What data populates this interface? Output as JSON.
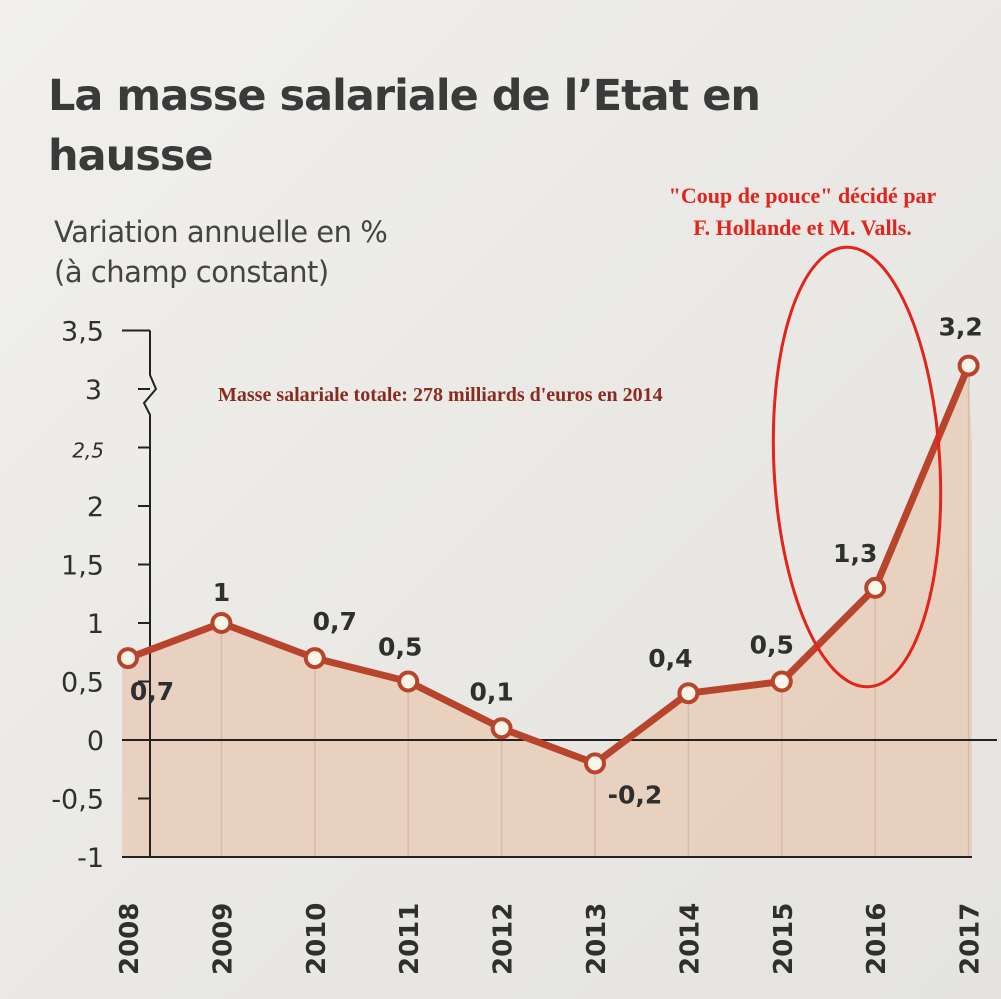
{
  "title": "La masse salariale de l’Etat en hausse",
  "subtitle_line1": "Variation annuelle en %",
  "subtitle_line2": "(à champ constant)",
  "annotations": {
    "total": "Masse salariale totale: 278 milliards d'euros en 2014",
    "boost_line1": "\"Coup de pouce\" décidé par",
    "boost_line2": "F. Hollande et M. Valls."
  },
  "colors": {
    "line": "#b8442b",
    "area": "#e7cdb8",
    "annotation_total": "#8b2a1e",
    "annotation_boost": "#e3241c",
    "ellipse": "#e3241c"
  },
  "chart_data": {
    "type": "area",
    "title": "La masse salariale de l’Etat en hausse",
    "subtitle": "Variation annuelle en % (à champ constant)",
    "x": [
      "2008",
      "2009",
      "2010",
      "2011",
      "2012",
      "2013",
      "2014",
      "2015",
      "2016",
      "2017"
    ],
    "series": [
      {
        "values": [
          0.7,
          1,
          0.7,
          0.5,
          0.1,
          -0.2,
          0.4,
          0.5,
          1.3,
          3.2
        ]
      }
    ],
    "data_labels": [
      "0,7",
      "1",
      "0,7",
      "0,5",
      "0,1",
      "-0,2",
      "0,4",
      "0,5",
      "1,3",
      "3,2"
    ],
    "y_ticks": [
      {
        "value": -1,
        "label": "-1"
      },
      {
        "value": -0.5,
        "label": "-0,5"
      },
      {
        "value": 0,
        "label": "0"
      },
      {
        "value": 0.5,
        "label": "0,5"
      },
      {
        "value": 1,
        "label": "1"
      },
      {
        "value": 1.5,
        "label": "1,5"
      },
      {
        "value": 2,
        "label": "2"
      },
      {
        "value": 2.5,
        "label": "2,5"
      },
      {
        "value": 3,
        "label": "3"
      },
      {
        "value": 3.5,
        "label": "3,5"
      }
    ],
    "ylim": [
      -1,
      3.5
    ],
    "axis_break": true,
    "grid": "vertical"
  }
}
